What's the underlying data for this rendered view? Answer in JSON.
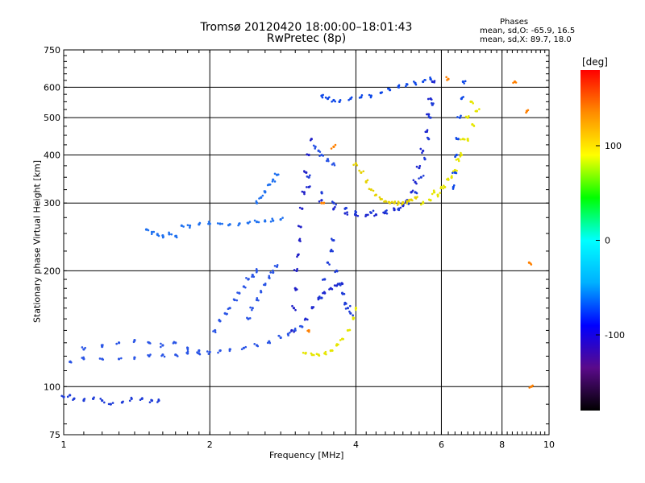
{
  "chart_data": {
    "type": "scatter",
    "title": "Tromsø 20120420 18:00:00–18:01:43",
    "subtitle": "RwPretec (8p)",
    "xlabel": "Frequency [MHz]",
    "ylabel": "Stationary phase Virtual Height [km]",
    "x_scale": "log",
    "y_scale": "log",
    "xlim": [
      1,
      10
    ],
    "ylim": [
      75,
      750
    ],
    "x_ticks": [
      1,
      2,
      4,
      6,
      8,
      10
    ],
    "y_ticks": [
      75,
      100,
      200,
      300,
      400,
      500,
      600,
      750
    ],
    "grid": true,
    "phase_stats": {
      "title": "Phases",
      "o_mode": "mean, sd,O: -65.9, 16.5",
      "x_mode": "mean, sd,X:  89.7, 18.0"
    },
    "colorbar": {
      "unit": "[deg]",
      "ticks": [
        100,
        0,
        -100
      ],
      "range": [
        -180,
        180
      ],
      "colors": [
        "#000000",
        "#5a0a8a",
        "#0000ff",
        "#00b0ff",
        "#00ffff",
        "#00ff00",
        "#ffff00",
        "#ff8c00",
        "#ff0000"
      ]
    },
    "series": [
      {
        "color": "#1e3cd8",
        "phase": -90,
        "points": [
          [
            1.0,
            94
          ],
          [
            1.03,
            95
          ],
          [
            1.05,
            93
          ],
          [
            1.1,
            92
          ],
          [
            1.15,
            93
          ],
          [
            1.2,
            92
          ],
          [
            1.25,
            90
          ],
          [
            1.32,
            91
          ],
          [
            1.38,
            93
          ],
          [
            1.45,
            93
          ],
          [
            1.52,
            92
          ],
          [
            1.57,
            92
          ]
        ]
      },
      {
        "color": "#2a55e6",
        "phase": -85,
        "points": [
          [
            1.03,
            116
          ],
          [
            1.1,
            118
          ],
          [
            1.2,
            118
          ],
          [
            1.3,
            118
          ],
          [
            1.4,
            119
          ],
          [
            1.5,
            120
          ],
          [
            1.6,
            121
          ],
          [
            1.7,
            121
          ],
          [
            1.8,
            122
          ],
          [
            1.9,
            122
          ],
          [
            2.0,
            123
          ],
          [
            2.1,
            124
          ],
          [
            2.2,
            125
          ],
          [
            2.35,
            126
          ],
          [
            2.5,
            128
          ],
          [
            2.65,
            131
          ],
          [
            2.8,
            134
          ],
          [
            2.9,
            137
          ],
          [
            3.0,
            140
          ],
          [
            3.1,
            143
          ]
        ]
      },
      {
        "color": "#2a55e6",
        "phase": -85,
        "points": [
          [
            1.1,
            125
          ],
          [
            1.2,
            127
          ],
          [
            1.3,
            130
          ],
          [
            1.4,
            132
          ],
          [
            1.5,
            130
          ],
          [
            1.6,
            128
          ],
          [
            1.7,
            130
          ],
          [
            1.8,
            126
          ],
          [
            1.9,
            124
          ]
        ]
      },
      {
        "color": "#1e70f0",
        "phase": -80,
        "points": [
          [
            1.48,
            256
          ],
          [
            1.52,
            252
          ],
          [
            1.56,
            249
          ],
          [
            1.6,
            247
          ],
          [
            1.65,
            249
          ],
          [
            1.7,
            246
          ],
          [
            1.75,
            262
          ],
          [
            1.82,
            262
          ],
          [
            1.9,
            264
          ],
          [
            2.0,
            265
          ],
          [
            2.1,
            265
          ],
          [
            2.2,
            264
          ],
          [
            2.3,
            265
          ],
          [
            2.4,
            266
          ],
          [
            2.5,
            268
          ],
          [
            2.6,
            269
          ],
          [
            2.7,
            270
          ],
          [
            2.8,
            272
          ]
        ]
      },
      {
        "color": "#1e70f0",
        "phase": -80,
        "points": [
          [
            2.5,
            300
          ],
          [
            2.55,
            310
          ],
          [
            2.6,
            320
          ],
          [
            2.65,
            335
          ],
          [
            2.7,
            345
          ],
          [
            2.75,
            355
          ]
        ]
      },
      {
        "color": "#2a55e6",
        "phase": -85,
        "points": [
          [
            2.05,
            140
          ],
          [
            2.1,
            148
          ],
          [
            2.15,
            155
          ],
          [
            2.2,
            160
          ],
          [
            2.25,
            168
          ],
          [
            2.3,
            175
          ],
          [
            2.35,
            182
          ],
          [
            2.4,
            190
          ],
          [
            2.45,
            195
          ],
          [
            2.5,
            200
          ]
        ]
      },
      {
        "color": "#2a55e6",
        "phase": -85,
        "points": [
          [
            2.4,
            150
          ],
          [
            2.45,
            160
          ],
          [
            2.5,
            168
          ],
          [
            2.55,
            176
          ],
          [
            2.6,
            184
          ],
          [
            2.65,
            192
          ],
          [
            2.7,
            198
          ],
          [
            2.75,
            205
          ]
        ]
      },
      {
        "color": "#2020c8",
        "phase": -105,
        "points": [
          [
            2.95,
            140
          ],
          [
            2.98,
            160
          ],
          [
            3.0,
            180
          ],
          [
            3.02,
            200
          ],
          [
            3.04,
            220
          ],
          [
            3.06,
            240
          ],
          [
            3.08,
            260
          ],
          [
            3.1,
            290
          ],
          [
            3.13,
            320
          ],
          [
            3.16,
            360
          ],
          [
            3.2,
            400
          ],
          [
            3.24,
            440
          ]
        ]
      },
      {
        "color": "#1e28d0",
        "phase": -100,
        "points": [
          [
            3.15,
            150
          ],
          [
            3.25,
            160
          ],
          [
            3.35,
            170
          ],
          [
            3.45,
            175
          ],
          [
            3.55,
            180
          ],
          [
            3.65,
            183
          ],
          [
            3.75,
            185
          ]
        ]
      },
      {
        "color": "#1e28d0",
        "phase": -100,
        "points": [
          [
            3.2,
            330
          ],
          [
            3.4,
            305
          ],
          [
            3.6,
            290
          ],
          [
            3.8,
            282
          ],
          [
            4.0,
            279
          ],
          [
            4.2,
            279
          ],
          [
            4.4,
            280
          ],
          [
            4.6,
            283
          ],
          [
            4.8,
            288
          ],
          [
            5.0,
            295
          ],
          [
            5.1,
            305
          ],
          [
            5.2,
            320
          ],
          [
            5.3,
            340
          ],
          [
            5.4,
            370
          ],
          [
            5.5,
            410
          ],
          [
            5.6,
            460
          ],
          [
            5.65,
            510
          ],
          [
            5.7,
            560
          ],
          [
            5.75,
            620
          ]
        ]
      },
      {
        "color": "#1e3cd8",
        "phase": -90,
        "points": [
          [
            3.2,
            350
          ],
          [
            3.4,
            320
          ],
          [
            3.6,
            300
          ],
          [
            3.8,
            290
          ],
          [
            4.0,
            284
          ],
          [
            4.3,
            283
          ],
          [
            4.6,
            285
          ],
          [
            4.9,
            290
          ],
          [
            5.1,
            300
          ],
          [
            5.3,
            320
          ],
          [
            5.45,
            350
          ],
          [
            5.55,
            390
          ],
          [
            5.65,
            440
          ],
          [
            5.7,
            500
          ],
          [
            5.75,
            540
          ]
        ]
      },
      {
        "color": "#1e3cd8",
        "phase": -92,
        "points": [
          [
            3.4,
            170
          ],
          [
            3.45,
            190
          ],
          [
            3.5,
            210
          ],
          [
            3.55,
            225
          ],
          [
            3.6,
            240
          ],
          [
            3.65,
            200
          ],
          [
            3.7,
            185
          ],
          [
            3.75,
            175
          ],
          [
            3.8,
            165
          ],
          [
            3.85,
            160
          ],
          [
            3.9,
            155
          ]
        ]
      },
      {
        "color": "#0d47e8",
        "phase": -95,
        "points": [
          [
            3.4,
            570
          ],
          [
            3.5,
            560
          ],
          [
            3.6,
            555
          ],
          [
            3.7,
            550
          ],
          [
            3.9,
            560
          ],
          [
            4.1,
            565
          ],
          [
            4.3,
            570
          ],
          [
            4.5,
            580
          ],
          [
            4.7,
            590
          ],
          [
            4.9,
            600
          ],
          [
            5.1,
            610
          ],
          [
            5.3,
            615
          ],
          [
            5.5,
            620
          ],
          [
            5.7,
            630
          ]
        ]
      },
      {
        "color": "#2a55e6",
        "phase": -85,
        "points": [
          [
            3.3,
            420
          ],
          [
            3.35,
            410
          ],
          [
            3.4,
            400
          ],
          [
            3.5,
            390
          ],
          [
            3.6,
            380
          ]
        ]
      },
      {
        "color": "#e6e600",
        "phase": 110,
        "points": [
          [
            3.15,
            122
          ],
          [
            3.25,
            121
          ],
          [
            3.35,
            121
          ],
          [
            3.45,
            122
          ],
          [
            3.55,
            124
          ],
          [
            3.65,
            128
          ],
          [
            3.75,
            133
          ],
          [
            3.85,
            140
          ],
          [
            3.95,
            150
          ],
          [
            4.0,
            160
          ]
        ]
      },
      {
        "color": "#e6d200",
        "phase": 120,
        "points": [
          [
            4.0,
            380
          ],
          [
            4.1,
            360
          ],
          [
            4.2,
            340
          ],
          [
            4.3,
            325
          ],
          [
            4.4,
            315
          ],
          [
            4.5,
            307
          ],
          [
            4.6,
            303
          ],
          [
            4.7,
            300
          ],
          [
            4.8,
            300
          ],
          [
            4.9,
            300
          ],
          [
            5.0,
            301
          ],
          [
            5.1,
            303
          ],
          [
            5.2,
            306
          ],
          [
            5.3,
            310
          ]
        ]
      },
      {
        "color": "#e6e600",
        "phase": 110,
        "points": [
          [
            5.5,
            300
          ],
          [
            5.7,
            305
          ],
          [
            5.9,
            315
          ],
          [
            6.1,
            330
          ],
          [
            6.3,
            350
          ],
          [
            6.5,
            390
          ],
          [
            6.65,
            440
          ],
          [
            6.8,
            500
          ],
          [
            6.9,
            550
          ]
        ]
      },
      {
        "color": "#e6e600",
        "phase": 110,
        "points": [
          [
            5.8,
            320
          ],
          [
            6.0,
            330
          ],
          [
            6.2,
            345
          ],
          [
            6.4,
            365
          ],
          [
            6.6,
            400
          ],
          [
            6.8,
            440
          ],
          [
            6.95,
            480
          ],
          [
            7.1,
            520
          ]
        ]
      },
      {
        "color": "#0d47e8",
        "phase": -95,
        "points": [
          [
            6.35,
            330
          ],
          [
            6.4,
            360
          ],
          [
            6.45,
            400
          ],
          [
            6.5,
            440
          ],
          [
            6.55,
            500
          ],
          [
            6.6,
            560
          ],
          [
            6.65,
            620
          ]
        ]
      },
      {
        "color": "#ff8000",
        "phase": 150,
        "points": [
          [
            3.2,
            140
          ],
          [
            3.4,
            300
          ],
          [
            3.6,
            420
          ],
          [
            6.2,
            630
          ],
          [
            8.5,
            620
          ],
          [
            9.0,
            520
          ],
          [
            9.1,
            210
          ],
          [
            9.2,
            100
          ]
        ]
      }
    ]
  }
}
